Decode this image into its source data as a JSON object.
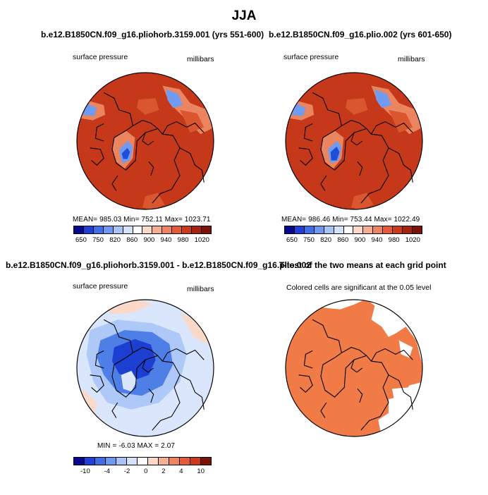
{
  "figure": {
    "title": "JJA"
  },
  "panels": {
    "top_left": {
      "title": "b.e12.B1850CN.f09_g16.pliohorb.3159.001 (yrs 551-600)",
      "variable": "surface pressure",
      "units": "millibars",
      "stats": "MEAN= 985.03   Min= 752.11   Max= 1023.71"
    },
    "top_right": {
      "title": "b.e12.B1850CN.f09_g16.plio.002 (yrs 601-650)",
      "variable": "surface pressure",
      "units": "millibars",
      "stats": "MEAN= 986.46   Min= 753.44   Max= 1022.49"
    },
    "bottom_left": {
      "title": "b.e12.B1850CN.f09_g16.pliohorb.3159.001 - b.e12.B1850CN.f09_g16.plio.002",
      "variable": "surface pressure",
      "units": "millibars",
      "stats": "MIN =   -6.03  MAX =    2.07"
    },
    "bottom_right": {
      "title": "T-test of the two means at each grid point",
      "subtitle": "Colored cells are significant at the 0.05 level"
    }
  },
  "colorbars": {
    "absolute": {
      "labels": [
        "650",
        "750",
        "820",
        "860",
        "900",
        "940",
        "980",
        "1020"
      ],
      "colors": [
        "#08088f",
        "#1f3fd8",
        "#3f6fe6",
        "#6e98f0",
        "#a6c4f6",
        "#d4e3fa",
        "#ffffff",
        "#fbd9c8",
        "#f6ae92",
        "#ef8462",
        "#e55a37",
        "#cc3a1a",
        "#a8230f",
        "#7a1208"
      ]
    },
    "difference": {
      "labels": [
        "-10",
        "-4",
        "-2",
        "0",
        "2",
        "4",
        "10"
      ],
      "colors": [
        "#08088f",
        "#1f3fd8",
        "#3f6fe6",
        "#6e98f0",
        "#a6c4f6",
        "#d4e3fa",
        "#ffffff",
        "#fbd9c8",
        "#f6ae92",
        "#ef8462",
        "#e55a37",
        "#cc3a1a",
        "#7a1208"
      ]
    }
  },
  "map_colors": {
    "field_base": "#c6381a",
    "field_dark": "#a1230e",
    "field_mid": "#d9562f",
    "field_light": "#ea8560",
    "low_blue": "#6f9cf0",
    "low_deep": "#1f4fd8",
    "diff_base": "#d9e6fb",
    "diff_mid": "#aec9f7",
    "diff_deep": "#4e7fe6",
    "diff_core": "#1d3fd1",
    "diff_warm": "#fbd9c8",
    "sig_fill": "#f07b47",
    "coast": "#000000"
  }
}
